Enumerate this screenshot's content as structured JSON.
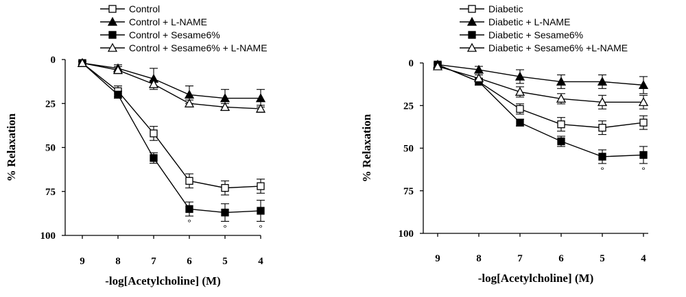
{
  "chart_data": [
    {
      "type": "line",
      "xlabel": "-log[Acetylcholine] (M)",
      "ylabel": "% Relaxation",
      "x": [
        9,
        8,
        7,
        6,
        5,
        4
      ],
      "xticks": [
        "9",
        "8",
        "7",
        "6",
        "5",
        "4"
      ],
      "yticks": [
        "0",
        "25",
        "50",
        "75",
        "100"
      ],
      "ylim": [
        0,
        100
      ],
      "y_inverted": true,
      "legend": "top",
      "annotation_symbol": "°",
      "series": [
        {
          "name": "Control",
          "marker": "open-square",
          "values": [
            2,
            18,
            42,
            69,
            73,
            72
          ],
          "errors": [
            1,
            3,
            4,
            4,
            4,
            4
          ]
        },
        {
          "name": "Control + L-NAME",
          "marker": "filled-triangle",
          "values": [
            2,
            5,
            11,
            20,
            22,
            22
          ],
          "errors": [
            1,
            2,
            6,
            5,
            5,
            5
          ]
        },
        {
          "name": "Control + Sesame6%",
          "marker": "filled-square",
          "values": [
            2,
            20,
            56,
            85,
            87,
            86
          ],
          "errors": [
            1,
            2,
            3,
            4,
            5,
            6
          ]
        },
        {
          "name": "Control + Sesame6% + L-NAME",
          "marker": "open-triangle",
          "values": [
            2,
            6,
            14,
            25,
            27,
            28
          ],
          "errors": [
            1,
            2,
            2,
            2,
            2,
            2
          ]
        }
      ],
      "annotations": [
        {
          "x": 6,
          "series": "Control + Sesame6%"
        },
        {
          "x": 5,
          "series": "Control + Sesame6%"
        },
        {
          "x": 4,
          "series": "Control + Sesame6%"
        }
      ]
    },
    {
      "type": "line",
      "xlabel": "-log[Acetylcholine] (M)",
      "ylabel": "% Relaxation",
      "x": [
        9,
        8,
        7,
        6,
        5,
        4
      ],
      "xticks": [
        "9",
        "8",
        "7",
        "6",
        "5",
        "4"
      ],
      "yticks": [
        "0",
        "25",
        "50",
        "75",
        "100"
      ],
      "ylim": [
        0,
        100
      ],
      "y_inverted": true,
      "legend": "top",
      "annotation_symbol": "°",
      "series": [
        {
          "name": "Diabetic",
          "marker": "open-square",
          "values": [
            1,
            11,
            27,
            36,
            38,
            35
          ],
          "errors": [
            1,
            2,
            3,
            4,
            4,
            4
          ]
        },
        {
          "name": "Diabetic + L-NAME",
          "marker": "filled-triangle",
          "values": [
            1,
            4,
            8,
            11,
            11,
            13
          ],
          "errors": [
            1,
            2,
            4,
            4,
            4,
            5
          ]
        },
        {
          "name": "Diabetic + Sesame6%",
          "marker": "filled-square",
          "values": [
            1,
            11,
            35,
            46,
            55,
            54
          ],
          "errors": [
            1,
            2,
            2,
            3,
            4,
            5
          ]
        },
        {
          "name": "Diabetic + Sesame6% +L-NAME",
          "marker": "open-triangle",
          "values": [
            2,
            9,
            17,
            21,
            23,
            23
          ],
          "errors": [
            1,
            2,
            3,
            3,
            4,
            4
          ]
        }
      ],
      "annotations": [
        {
          "x": 5,
          "series": "Diabetic + Sesame6%"
        },
        {
          "x": 4,
          "series": "Diabetic + Sesame6%"
        }
      ]
    }
  ]
}
